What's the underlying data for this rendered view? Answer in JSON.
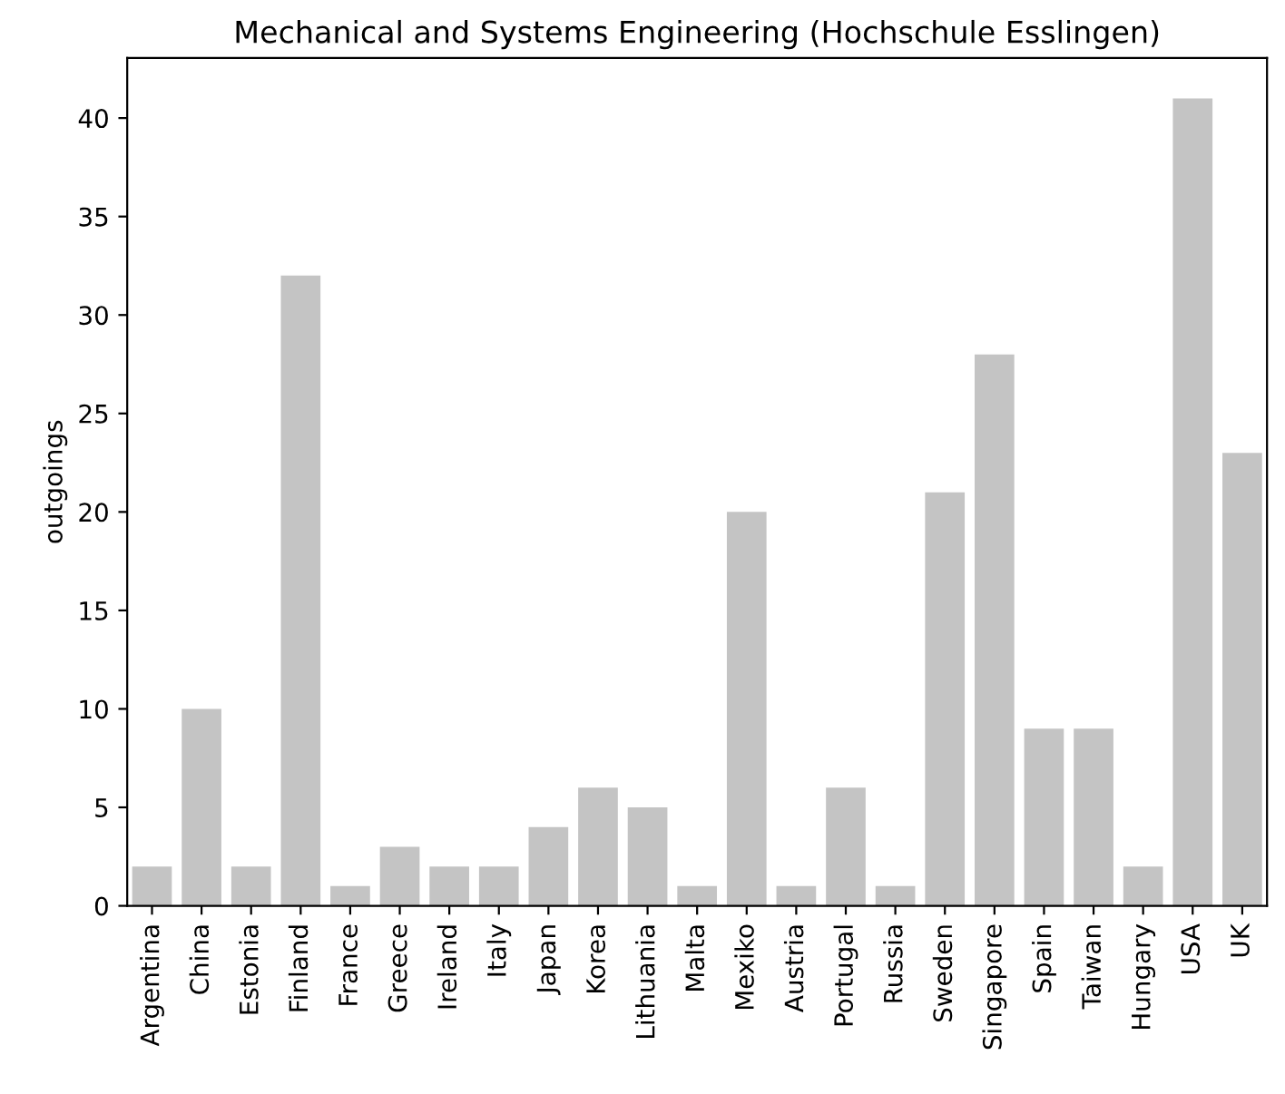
{
  "chart_data": {
    "type": "bar",
    "title": "Mechanical and Systems Engineering (Hochschule Esslingen)",
    "ylabel": "outgoings",
    "categories": [
      "Argentina",
      "China",
      "Estonia",
      "Finland",
      "France",
      "Greece",
      "Ireland",
      "Italy",
      "Japan",
      "Korea",
      "Lithuania",
      "Malta",
      "Mexiko",
      "Austria",
      "Portugal",
      "Russia",
      "Sweden",
      "Singapore",
      "Spain",
      "Taiwan",
      "Hungary",
      "USA",
      "UK"
    ],
    "values": [
      2,
      10,
      2,
      32,
      1,
      3,
      2,
      2,
      4,
      6,
      5,
      1,
      20,
      1,
      6,
      1,
      21,
      28,
      9,
      9,
      2,
      41,
      23
    ],
    "color": "#c4c4c4",
    "ylim": [
      0,
      43.05
    ],
    "yticks": [
      0,
      5,
      10,
      15,
      20,
      25,
      30,
      35,
      40
    ],
    "grid": false
  }
}
